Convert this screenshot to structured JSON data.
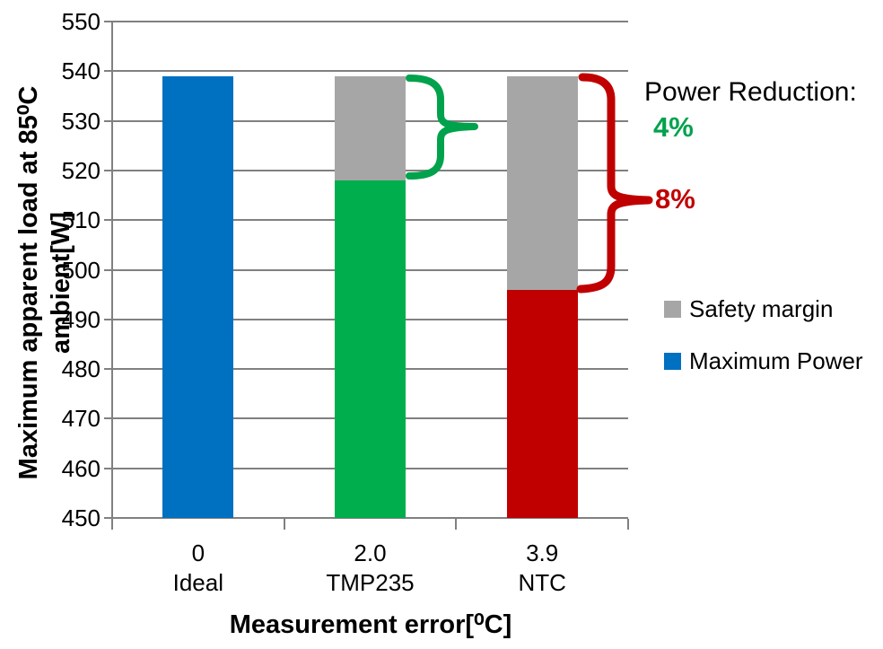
{
  "chart_data": {
    "type": "bar",
    "stacked": true,
    "xlabel": "Measurement error[⁰C]",
    "ylabel": "Maximum apparent load at 85⁰C ambient[W]",
    "ylim": [
      450,
      550
    ],
    "ytick_step": 10,
    "grid": true,
    "gridline_color": "#808080",
    "axis_color": "#808080",
    "categories": [
      {
        "error": "0",
        "name": "Ideal",
        "color": "#0070C0"
      },
      {
        "error": "2.0",
        "name": "TMP235",
        "color": "#00AE4E"
      },
      {
        "error": "3.9",
        "name": "NTC",
        "color": "#C00000"
      }
    ],
    "series": [
      {
        "name": "Maximum Power",
        "values": [
          539,
          518,
          496
        ]
      },
      {
        "name": "Safety margin",
        "values": [
          0,
          21,
          43
        ],
        "color": "#A6A6A6"
      }
    ],
    "legend": {
      "position": "right",
      "items": [
        {
          "label": "Safety margin",
          "color": "#A6A6A6"
        },
        {
          "label": "Maximum Power",
          "color": "#0070C0"
        }
      ]
    },
    "annotations": {
      "title": "Power Reduction:",
      "title_color": "#000000",
      "items": [
        {
          "category": "TMP235",
          "label": "4%",
          "color": "#00A24C",
          "brace_span": [
            518,
            539
          ]
        },
        {
          "category": "NTC",
          "label": "8%",
          "color": "#C00000",
          "brace_span": [
            496,
            539
          ]
        }
      ]
    }
  }
}
